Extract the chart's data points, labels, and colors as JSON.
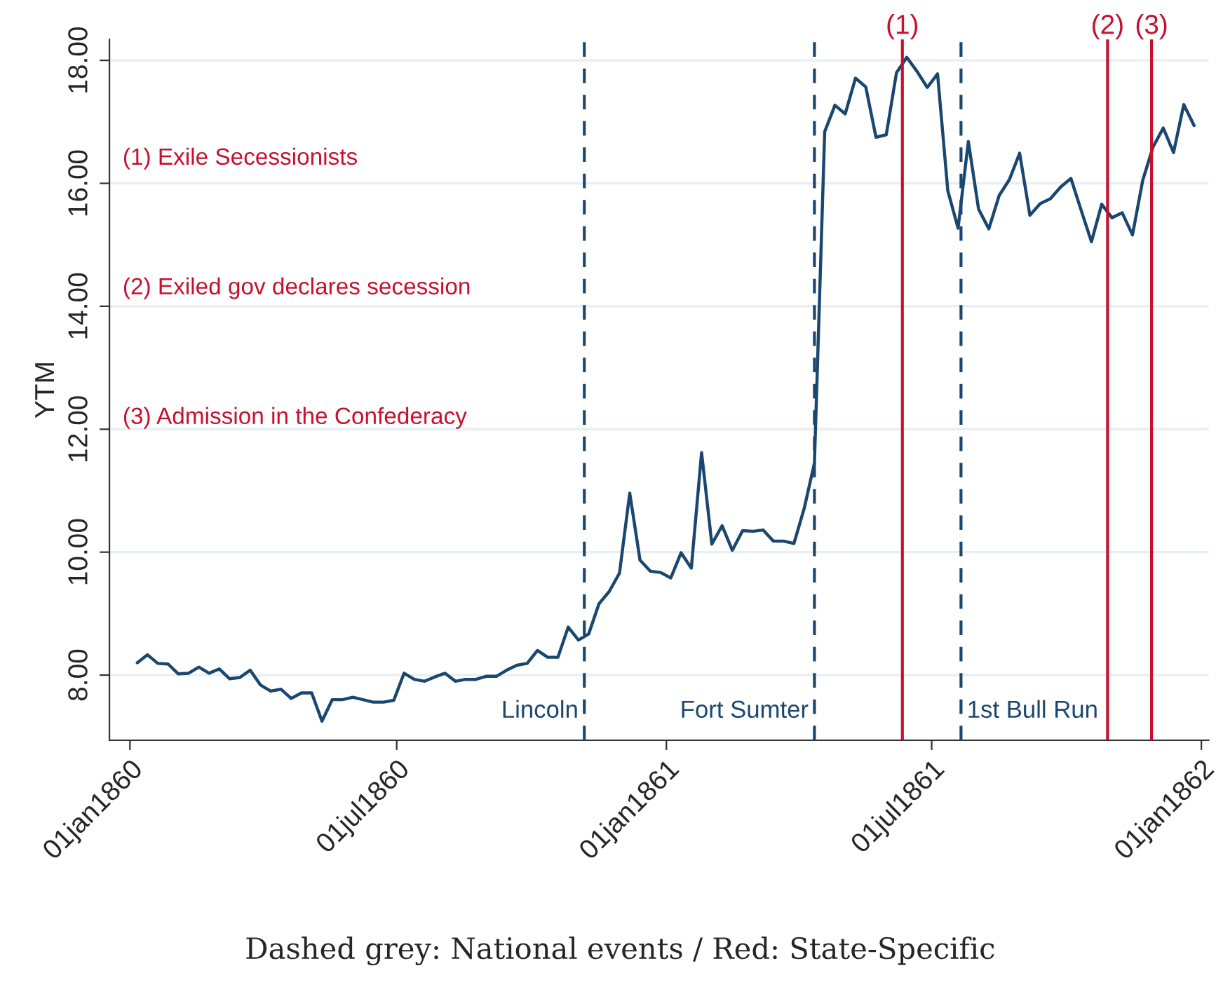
{
  "chart_data": {
    "type": "line",
    "ylabel": "YTM",
    "x": [
      "1860-01-06",
      "1860-01-13",
      "1860-01-20",
      "1860-01-27",
      "1860-02-03",
      "1860-02-10",
      "1860-02-17",
      "1860-02-24",
      "1860-03-02",
      "1860-03-09",
      "1860-03-16",
      "1860-03-23",
      "1860-03-30",
      "1860-04-06",
      "1860-04-13",
      "1860-04-20",
      "1860-04-27",
      "1860-05-04",
      "1860-05-11",
      "1860-05-18",
      "1860-05-25",
      "1860-06-01",
      "1860-06-08",
      "1860-06-15",
      "1860-06-22",
      "1860-06-29",
      "1860-07-06",
      "1860-07-13",
      "1860-07-20",
      "1860-07-27",
      "1860-08-03",
      "1860-08-10",
      "1860-08-17",
      "1860-08-24",
      "1860-08-31",
      "1860-09-07",
      "1860-09-14",
      "1860-09-21",
      "1860-09-28",
      "1860-10-05",
      "1860-10-12",
      "1860-10-19",
      "1860-10-26",
      "1860-11-02",
      "1860-11-09",
      "1860-11-16",
      "1860-11-23",
      "1860-11-30",
      "1860-12-07",
      "1860-12-14",
      "1860-12-21",
      "1860-12-28",
      "1861-01-04",
      "1861-01-11",
      "1861-01-18",
      "1861-01-25",
      "1861-02-01",
      "1861-02-08",
      "1861-02-15",
      "1861-02-22",
      "1861-03-01",
      "1861-03-08",
      "1861-03-15",
      "1861-03-22",
      "1861-03-29",
      "1861-04-05",
      "1861-04-12",
      "1861-04-19",
      "1861-04-26",
      "1861-05-03",
      "1861-05-10",
      "1861-05-17",
      "1861-05-24",
      "1861-05-31",
      "1861-06-07",
      "1861-06-14",
      "1861-06-21",
      "1861-06-28",
      "1861-07-05",
      "1861-07-12",
      "1861-07-19",
      "1861-07-26",
      "1861-08-02",
      "1861-08-09",
      "1861-08-16",
      "1861-08-23",
      "1861-08-30",
      "1861-09-06",
      "1861-09-13",
      "1861-09-20",
      "1861-09-27",
      "1861-10-04",
      "1861-10-11",
      "1861-10-18",
      "1861-10-25",
      "1861-11-01",
      "1861-11-08",
      "1861-11-15",
      "1861-11-22",
      "1861-11-29",
      "1861-12-06",
      "1861-12-13",
      "1861-12-20",
      "1861-12-27"
    ],
    "series": [
      {
        "color": "#1a476f",
        "values": [
          8.2,
          8.33,
          8.19,
          8.18,
          8.02,
          8.03,
          8.13,
          8.03,
          8.1,
          7.94,
          7.96,
          8.08,
          7.84,
          7.74,
          7.77,
          7.62,
          7.71,
          7.71,
          7.25,
          7.6,
          7.6,
          7.64,
          7.6,
          7.56,
          7.56,
          7.59,
          8.03,
          7.93,
          7.9,
          7.97,
          8.03,
          7.9,
          7.93,
          7.93,
          7.98,
          7.98,
          8.08,
          8.16,
          8.19,
          8.4,
          8.29,
          8.29,
          8.78,
          8.57,
          8.67,
          9.16,
          9.36,
          9.66,
          10.96,
          9.87,
          9.69,
          9.67,
          9.58,
          9.99,
          9.74,
          11.62,
          10.13,
          10.43,
          10.03,
          10.35,
          10.34,
          10.36,
          10.18,
          10.18,
          10.14,
          10.71,
          11.45,
          16.84,
          17.27,
          17.13,
          17.71,
          17.57,
          16.75,
          16.79,
          17.8,
          18.05,
          17.82,
          17.56,
          17.78,
          15.88,
          15.27,
          16.68,
          15.58,
          15.26,
          15.8,
          16.06,
          16.49,
          15.48,
          15.67,
          15.75,
          15.94,
          16.08,
          15.56,
          15.05,
          15.66,
          15.44,
          15.52,
          15.16,
          16.05,
          16.59,
          16.9,
          16.5,
          17.28,
          16.94
        ]
      }
    ],
    "xlim": [
      "1859-12-18",
      "1862-01-06"
    ],
    "xticks": [
      {
        "value": "1860-01-01",
        "label": "01jan1860"
      },
      {
        "value": "1860-07-01",
        "label": "01jul1860"
      },
      {
        "value": "1861-01-01",
        "label": "01jan1861"
      },
      {
        "value": "1861-07-01",
        "label": "01jul1861"
      },
      {
        "value": "1862-01-01",
        "label": "01jan1862"
      }
    ],
    "ylim": [
      6.94,
      18.34
    ],
    "yticks": [
      {
        "value": 8,
        "label": "8.00"
      },
      {
        "value": 10,
        "label": "10.00"
      },
      {
        "value": 12,
        "label": "12.00"
      },
      {
        "value": 14,
        "label": "14.00"
      },
      {
        "value": 16,
        "label": "16.00"
      },
      {
        "value": 18,
        "label": "18.00"
      }
    ],
    "grid": "y",
    "legend": false,
    "line_style": "solid",
    "marker": "none",
    "ref_lines": [
      {
        "axis": "x",
        "value": "1860-11-06",
        "label": "Lincoln",
        "color": "#1a476f",
        "line_style": "dashed"
      },
      {
        "axis": "x",
        "value": "1861-04-12",
        "label": "Fort Sumter",
        "color": "#1a476f",
        "line_style": "dashed"
      },
      {
        "axis": "x",
        "value": "1861-07-21",
        "label": "1st Bull Run",
        "color": "#1a476f",
        "line_style": "dashed"
      },
      {
        "axis": "x",
        "value": "1861-06-11",
        "label": "(1)",
        "color": "#c8102e",
        "line_style": "solid"
      },
      {
        "axis": "x",
        "value": "1861-10-29",
        "label": "(2)",
        "color": "#c8102e",
        "line_style": "solid"
      },
      {
        "axis": "x",
        "value": "1861-11-28",
        "label": "(3)",
        "color": "#c8102e",
        "line_style": "solid"
      }
    ],
    "annotations": [
      "(1) Exile Secessionists",
      "(2) Exiled gov declares secession",
      "(3) Admission in the Confederacy",
      "Dashed grey: National events / Red: State-Specific"
    ]
  }
}
